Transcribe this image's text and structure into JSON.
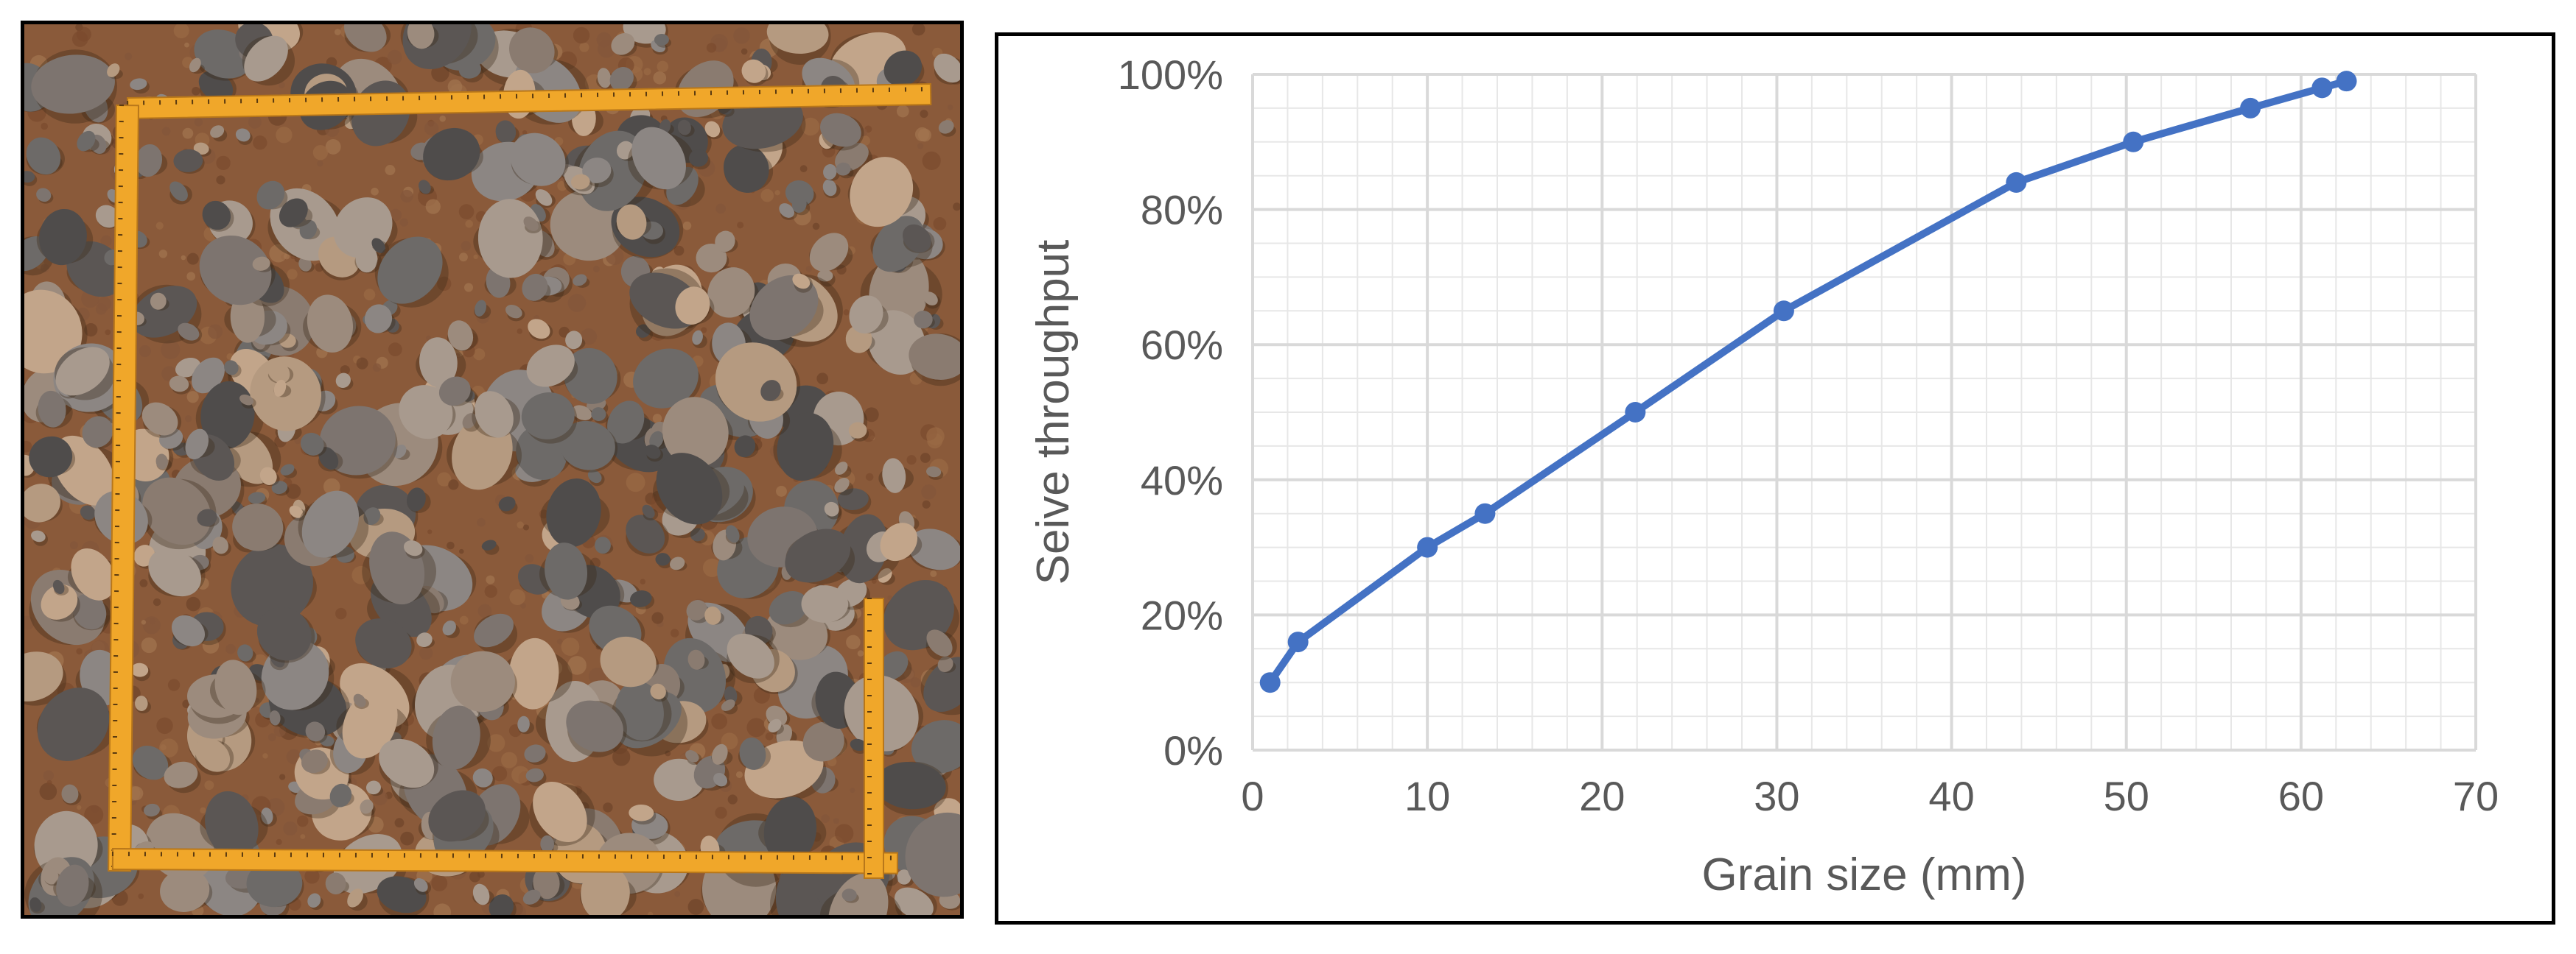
{
  "photo": {
    "description_icon": "gravel-quadrat-photo-icon",
    "colors": {
      "soil": "#8a5a3a",
      "ruler": "#f0a72a"
    }
  },
  "chart_data": {
    "type": "line",
    "x": [
      1.0,
      2.6,
      10.0,
      13.3,
      21.9,
      30.4,
      43.7,
      50.4,
      57.1,
      61.2,
      62.6
    ],
    "series": [
      {
        "values": [
          10,
          16,
          30,
          35,
          50,
          65,
          84,
          90,
          95,
          98,
          99
        ]
      }
    ],
    "xlabel": "Grain size (mm)",
    "ylabel": "Seive throughput",
    "xlim": [
      0,
      70
    ],
    "ylim": [
      0,
      100
    ],
    "x_ticks": [
      "0",
      "10",
      "20",
      "30",
      "40",
      "50",
      "60",
      "70"
    ],
    "y_ticks": [
      "0%",
      "20%",
      "40%",
      "60%",
      "80%",
      "100%"
    ],
    "grid": true,
    "legend": "none",
    "colors": {
      "series": "#4472c4",
      "grid": "#d9d9d9"
    }
  }
}
